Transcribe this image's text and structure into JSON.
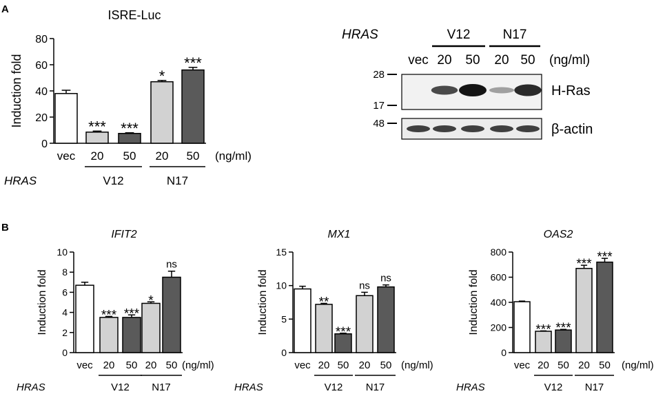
{
  "panel_labels": [
    "A",
    "B"
  ],
  "chart_data": [
    {
      "type": "bar",
      "title": "ISRE-Luc",
      "title_italic": false,
      "ylabel": "Induction fold",
      "ylim": [
        0,
        80
      ],
      "yticks": [
        0,
        20,
        40,
        60,
        80
      ],
      "categories": [
        "vec",
        "20",
        "50",
        "20",
        "50"
      ],
      "unit": "(ng/ml)",
      "factor": "HRAS",
      "groups": [
        {
          "label": "V12",
          "from": 1,
          "to": 2
        },
        {
          "label": "N17",
          "from": 3,
          "to": 4
        }
      ],
      "values": [
        38,
        8.5,
        7.5,
        47,
        56
      ],
      "errors": [
        2.5,
        0.8,
        0.5,
        1.0,
        2.0
      ],
      "significance": [
        "",
        "***",
        "***",
        "*",
        "***"
      ],
      "bar_colors": [
        "#ffffff",
        "#d2d2d2",
        "#5a5a5a",
        "#d2d2d2",
        "#5a5a5a"
      ]
    },
    {
      "type": "bar",
      "title": "IFIT2",
      "title_italic": true,
      "ylabel": "Induction fold",
      "ylim": [
        0,
        10
      ],
      "yticks": [
        0,
        2,
        4,
        6,
        8,
        10
      ],
      "categories": [
        "vec",
        "20",
        "50",
        "20",
        "50"
      ],
      "unit": "(ng/ml)",
      "factor": "HRAS",
      "groups": [
        {
          "label": "V12",
          "from": 1,
          "to": 2
        },
        {
          "label": "N17",
          "from": 3,
          "to": 4
        }
      ],
      "values": [
        6.7,
        3.5,
        3.5,
        4.9,
        7.5
      ],
      "errors": [
        0.3,
        0.1,
        0.25,
        0.15,
        0.6
      ],
      "significance": [
        "",
        "***",
        "***",
        "*",
        "ns"
      ],
      "bar_colors": [
        "#ffffff",
        "#d2d2d2",
        "#5a5a5a",
        "#d2d2d2",
        "#5a5a5a"
      ]
    },
    {
      "type": "bar",
      "title": "MX1",
      "title_italic": true,
      "ylabel": "Induction fold",
      "ylim": [
        0,
        15
      ],
      "yticks": [
        0,
        5,
        10,
        15
      ],
      "categories": [
        "vec",
        "20",
        "50",
        "20",
        "50"
      ],
      "unit": "(ng/ml)",
      "factor": "HRAS",
      "groups": [
        {
          "label": "V12",
          "from": 1,
          "to": 2
        },
        {
          "label": "N17",
          "from": 3,
          "to": 4
        }
      ],
      "values": [
        9.5,
        7.2,
        2.8,
        8.5,
        9.8
      ],
      "errors": [
        0.4,
        0.15,
        0.1,
        0.5,
        0.3
      ],
      "significance": [
        "",
        "**",
        "***",
        "ns",
        "ns"
      ],
      "bar_colors": [
        "#ffffff",
        "#d2d2d2",
        "#5a5a5a",
        "#d2d2d2",
        "#5a5a5a"
      ]
    },
    {
      "type": "bar",
      "title": "OAS2",
      "title_italic": true,
      "ylabel": "Induction fold",
      "ylim": [
        0,
        800
      ],
      "yticks": [
        0,
        200,
        400,
        600,
        800
      ],
      "categories": [
        "vec",
        "20",
        "50",
        "20",
        "50"
      ],
      "unit": "(ng/ml)",
      "factor": "HRAS",
      "groups": [
        {
          "label": "V12",
          "from": 1,
          "to": 2
        },
        {
          "label": "N17",
          "from": 3,
          "to": 4
        }
      ],
      "values": [
        405,
        170,
        180,
        670,
        720
      ],
      "errors": [
        5,
        3,
        5,
        25,
        30
      ],
      "significance": [
        "",
        "***",
        "***",
        "***",
        "***"
      ],
      "bar_colors": [
        "#ffffff",
        "#d2d2d2",
        "#5a5a5a",
        "#d2d2d2",
        "#5a5a5a"
      ]
    }
  ],
  "western_blot": {
    "factor": "HRAS",
    "groups": [
      {
        "label": "V12",
        "from": 1,
        "to": 2
      },
      {
        "label": "N17",
        "from": 3,
        "to": 4
      }
    ],
    "lanes": [
      "vec",
      "20",
      "50",
      "20",
      "50"
    ],
    "unit": "(ng/ml)",
    "markers": [
      "28",
      "17",
      "48"
    ],
    "bands": [
      {
        "label": "H-Ras",
        "intensities": [
          0,
          0.75,
          1.0,
          0.35,
          0.9
        ]
      },
      {
        "label": "β-actin",
        "intensities": [
          0.8,
          0.8,
          0.8,
          0.8,
          0.8
        ]
      }
    ]
  }
}
